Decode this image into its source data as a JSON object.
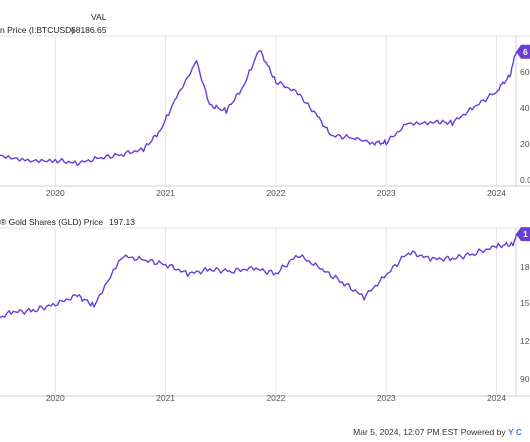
{
  "legend1": {
    "val_header": "VAL",
    "series_name": "n Price (I:BTCUSD)",
    "value": "68186.65"
  },
  "legend2": {
    "series_name": "® Gold Shares (GLD) Price",
    "value": "197.13"
  },
  "footer": {
    "text": "Mar 5, 2024, 12:07 PM EST Powered by",
    "logo": "Y C"
  },
  "colors": {
    "line": "#6a3fd6",
    "grid": "#e6e6e6",
    "badge": "#6a3fd6"
  },
  "chart_data": [
    {
      "type": "line",
      "title": "n Price (I:BTCUSD)",
      "x_ticks": [
        "2020",
        "2021",
        "2022",
        "2023",
        "2024"
      ],
      "y_ticks": [
        "60",
        "40",
        "20",
        "0.0"
      ],
      "ylim": [
        0,
        70
      ],
      "badge_label": "6",
      "grid": true,
      "series": [
        {
          "name": "n Price (I:BTCUSD)",
          "x": [
            2019.0,
            2019.25,
            2019.5,
            2019.75,
            2020.0,
            2020.2,
            2020.4,
            2020.6,
            2020.8,
            2020.95,
            2021.1,
            2021.28,
            2021.4,
            2021.55,
            2021.7,
            2021.85,
            2022.0,
            2022.2,
            2022.38,
            2022.5,
            2022.7,
            2022.87,
            2023.0,
            2023.2,
            2023.45,
            2023.6,
            2023.8,
            2024.0,
            2024.12,
            2024.18
          ],
          "values": [
            8.5,
            7.5,
            10.5,
            8.0,
            8.0,
            6.5,
            9.0,
            11.0,
            13.5,
            23.0,
            40.0,
            58.0,
            36.0,
            33.0,
            45.0,
            64.0,
            48.0,
            42.0,
            30.0,
            20.5,
            19.5,
            16.8,
            17.0,
            27.0,
            27.5,
            27.0,
            35.0,
            43.0,
            51.0,
            63.0
          ]
        }
      ]
    },
    {
      "type": "line",
      "title": "® Gold Shares (GLD) Price",
      "x_ticks": [
        "2020",
        "2021",
        "2022",
        "2023",
        "2024"
      ],
      "y_ticks": [
        "18",
        "15",
        "12",
        "90"
      ],
      "ylim": [
        86,
        200
      ],
      "badge_label": "1",
      "grid": true,
      "series": [
        {
          "name": "® Gold Shares (GLD) Price",
          "x": [
            2019.0,
            2019.2,
            2019.4,
            2019.6,
            2019.8,
            2020.0,
            2020.2,
            2020.35,
            2020.6,
            2020.8,
            2021.0,
            2021.2,
            2021.4,
            2021.6,
            2021.8,
            2022.0,
            2022.2,
            2022.4,
            2022.6,
            2022.8,
            2023.0,
            2023.2,
            2023.4,
            2023.6,
            2023.8,
            2024.0,
            2024.15,
            2024.18
          ],
          "values": [
            122,
            126,
            132,
            140,
            141,
            146,
            152,
            145,
            181,
            178,
            175,
            168,
            171,
            170,
            172,
            168,
            182,
            172,
            162,
            151,
            167,
            184,
            179,
            179,
            183,
            188,
            190,
            197
          ]
        }
      ]
    }
  ]
}
